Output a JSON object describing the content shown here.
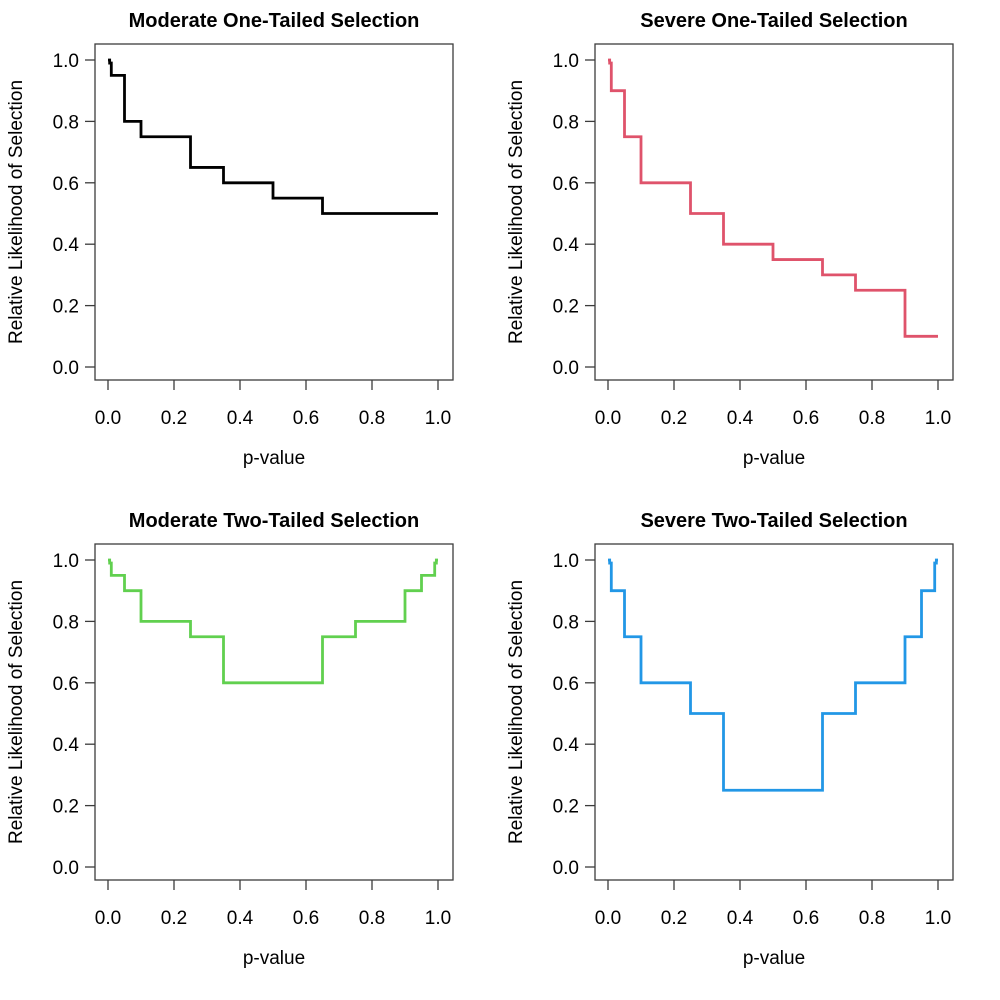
{
  "page": {
    "background": "#ffffff",
    "description_visible_text_only": true
  },
  "chart_data": [
    {
      "type": "line",
      "subtype": "step",
      "title": "Moderate One-Tailed Selection",
      "xlabel": "p-value",
      "ylabel": "Relative Likelihood of Selection",
      "color": "#000000",
      "xlim": [
        0,
        1
      ],
      "ylim": [
        0,
        1
      ],
      "grid": false,
      "legend": "none",
      "xticks": [
        0,
        0.2,
        0.4,
        0.6,
        0.8,
        1.0
      ],
      "xtick_labels": [
        "0.0",
        "0.2",
        "0.4",
        "0.6",
        "0.8",
        "1.0"
      ],
      "yticks": [
        0,
        0.2,
        0.4,
        0.6,
        0.8,
        1.0
      ],
      "ytick_labels": [
        "0.0",
        "0.2",
        "0.4",
        "0.6",
        "0.8",
        "1.0"
      ],
      "p_cutpoints": [
        0,
        0.005,
        0.01,
        0.05,
        0.1,
        0.25,
        0.35,
        0.5,
        0.65,
        0.75,
        0.9,
        0.95,
        0.99,
        0.995,
        1.0
      ],
      "weights": [
        1.0,
        0.99,
        0.95,
        0.8,
        0.75,
        0.65,
        0.6,
        0.55,
        0.5,
        0.5,
        0.5,
        0.5,
        0.5,
        0.5
      ]
    },
    {
      "type": "line",
      "subtype": "step",
      "title": "Severe One-Tailed Selection",
      "xlabel": "p-value",
      "ylabel": "Relative Likelihood of Selection",
      "color": "#DF536B",
      "xlim": [
        0,
        1
      ],
      "ylim": [
        0,
        1
      ],
      "grid": false,
      "legend": "none",
      "xticks": [
        0,
        0.2,
        0.4,
        0.6,
        0.8,
        1.0
      ],
      "xtick_labels": [
        "0.0",
        "0.2",
        "0.4",
        "0.6",
        "0.8",
        "1.0"
      ],
      "yticks": [
        0,
        0.2,
        0.4,
        0.6,
        0.8,
        1.0
      ],
      "ytick_labels": [
        "0.0",
        "0.2",
        "0.4",
        "0.6",
        "0.8",
        "1.0"
      ],
      "p_cutpoints": [
        0,
        0.005,
        0.01,
        0.05,
        0.1,
        0.25,
        0.35,
        0.5,
        0.65,
        0.75,
        0.9,
        0.95,
        0.99,
        0.995,
        1.0
      ],
      "weights": [
        1.0,
        0.99,
        0.9,
        0.75,
        0.6,
        0.5,
        0.4,
        0.35,
        0.3,
        0.25,
        0.1,
        0.1,
        0.1,
        0.1
      ]
    },
    {
      "type": "line",
      "subtype": "step",
      "title": "Moderate Two-Tailed Selection",
      "xlabel": "p-value",
      "ylabel": "Relative Likelihood of Selection",
      "color": "#61D04F",
      "xlim": [
        0,
        1
      ],
      "ylim": [
        0,
        1
      ],
      "grid": false,
      "legend": "none",
      "xticks": [
        0,
        0.2,
        0.4,
        0.6,
        0.8,
        1.0
      ],
      "xtick_labels": [
        "0.0",
        "0.2",
        "0.4",
        "0.6",
        "0.8",
        "1.0"
      ],
      "yticks": [
        0,
        0.2,
        0.4,
        0.6,
        0.8,
        1.0
      ],
      "ytick_labels": [
        "0.0",
        "0.2",
        "0.4",
        "0.6",
        "0.8",
        "1.0"
      ],
      "p_cutpoints": [
        0,
        0.005,
        0.01,
        0.05,
        0.1,
        0.25,
        0.35,
        0.5,
        0.65,
        0.75,
        0.9,
        0.95,
        0.99,
        0.995,
        1.0
      ],
      "weights": [
        1.0,
        0.99,
        0.95,
        0.9,
        0.8,
        0.75,
        0.6,
        0.6,
        0.75,
        0.8,
        0.9,
        0.95,
        0.99,
        1.0
      ]
    },
    {
      "type": "line",
      "subtype": "step",
      "title": "Severe Two-Tailed Selection",
      "xlabel": "p-value",
      "ylabel": "Relative Likelihood of Selection",
      "color": "#2297E6",
      "xlim": [
        0,
        1
      ],
      "ylim": [
        0,
        1
      ],
      "grid": false,
      "legend": "none",
      "xticks": [
        0,
        0.2,
        0.4,
        0.6,
        0.8,
        1.0
      ],
      "xtick_labels": [
        "0.0",
        "0.2",
        "0.4",
        "0.6",
        "0.8",
        "1.0"
      ],
      "yticks": [
        0,
        0.2,
        0.4,
        0.6,
        0.8,
        1.0
      ],
      "ytick_labels": [
        "0.0",
        "0.2",
        "0.4",
        "0.6",
        "0.8",
        "1.0"
      ],
      "p_cutpoints": [
        0,
        0.005,
        0.01,
        0.05,
        0.1,
        0.25,
        0.35,
        0.5,
        0.65,
        0.75,
        0.9,
        0.95,
        0.99,
        0.995,
        1.0
      ],
      "weights": [
        1.0,
        0.99,
        0.9,
        0.75,
        0.6,
        0.5,
        0.25,
        0.25,
        0.5,
        0.6,
        0.75,
        0.9,
        0.99,
        1.0
      ]
    }
  ]
}
